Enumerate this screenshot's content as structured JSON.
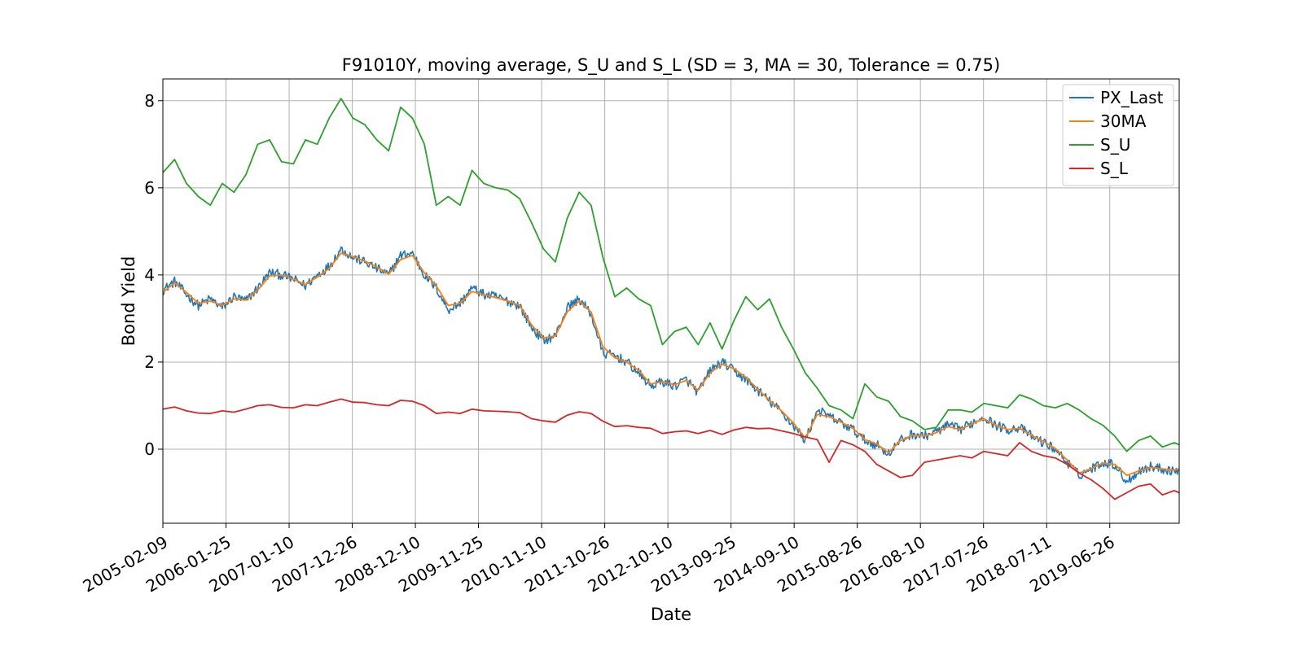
{
  "chart_data": {
    "type": "line",
    "title": "F91010Y, moving average, S_U and S_L (SD = 3, MA = 30, Tolerance  = 0.75)",
    "xlabel": "Date",
    "ylabel": "Bond Yield",
    "xlim": [
      "2005-02-09",
      "2020-07-15"
    ],
    "ylim": [
      -1.7,
      8.5
    ],
    "x_tick_labels": [
      "2005-02-09",
      "2006-01-25",
      "2007-01-10",
      "2007-12-26",
      "2008-12-10",
      "2009-11-25",
      "2010-11-10",
      "2011-10-26",
      "2012-10-10",
      "2013-09-25",
      "2014-09-10",
      "2015-08-26",
      "2016-08-10",
      "2017-07-26",
      "2018-07-11",
      "2019-06-26"
    ],
    "y_ticks": [
      0,
      2,
      4,
      6,
      8
    ],
    "grid": true,
    "legend_position": "top-right",
    "series": [
      {
        "name": "PX_Last",
        "color": "#1f77b4",
        "x": [
          "2005-02-09",
          "2005-04-15",
          "2005-06-20",
          "2005-08-25",
          "2005-10-30",
          "2006-01-04",
          "2006-03-10",
          "2006-05-15",
          "2006-07-20",
          "2006-09-24",
          "2006-11-29",
          "2007-02-03",
          "2007-04-10",
          "2007-06-15",
          "2007-08-20",
          "2007-10-25",
          "2007-12-30",
          "2008-03-05",
          "2008-05-10",
          "2008-07-15",
          "2008-09-19",
          "2008-11-24",
          "2009-01-29",
          "2009-04-05",
          "2009-06-10",
          "2009-08-15",
          "2009-10-20",
          "2009-12-25",
          "2010-03-01",
          "2010-05-06",
          "2010-07-11",
          "2010-09-15",
          "2010-11-20",
          "2011-01-25",
          "2011-04-01",
          "2011-06-06",
          "2011-08-11",
          "2011-10-16",
          "2011-12-21",
          "2012-02-25",
          "2012-05-01",
          "2012-07-06",
          "2012-09-10",
          "2012-11-15",
          "2013-01-20",
          "2013-03-27",
          "2013-06-01",
          "2013-08-06",
          "2013-10-11",
          "2013-12-16",
          "2014-02-20",
          "2014-04-27",
          "2014-07-02",
          "2014-09-06",
          "2014-11-11",
          "2015-01-16",
          "2015-03-23",
          "2015-05-28",
          "2015-08-02",
          "2015-10-07",
          "2015-12-12",
          "2016-02-16",
          "2016-04-22",
          "2016-06-27",
          "2016-09-01",
          "2016-11-06",
          "2017-01-11",
          "2017-03-18",
          "2017-05-23",
          "2017-07-28",
          "2017-10-02",
          "2017-12-07",
          "2018-02-11",
          "2018-04-18",
          "2018-06-23",
          "2018-08-28",
          "2018-11-02",
          "2019-01-07",
          "2019-03-14",
          "2019-05-19",
          "2019-07-24",
          "2019-09-28",
          "2019-12-03",
          "2020-02-07",
          "2020-04-13",
          "2020-06-18",
          "2020-07-15"
        ],
        "y": [
          3.65,
          3.85,
          3.55,
          3.3,
          3.45,
          3.25,
          3.5,
          3.4,
          3.7,
          4.05,
          4.0,
          3.9,
          3.75,
          4.0,
          4.2,
          4.6,
          4.4,
          4.3,
          4.15,
          4.0,
          4.45,
          4.5,
          4.0,
          3.7,
          3.2,
          3.35,
          3.7,
          3.55,
          3.5,
          3.4,
          3.3,
          2.8,
          2.5,
          2.6,
          3.25,
          3.45,
          3.1,
          2.2,
          2.15,
          2.0,
          1.75,
          1.45,
          1.55,
          1.45,
          1.6,
          1.3,
          1.8,
          2.0,
          1.8,
          1.6,
          1.35,
          1.1,
          0.85,
          0.55,
          0.2,
          0.9,
          0.75,
          0.6,
          0.45,
          0.2,
          0.1,
          -0.1,
          0.2,
          0.35,
          0.3,
          0.4,
          0.55,
          0.45,
          0.6,
          0.75,
          0.55,
          0.45,
          0.5,
          0.3,
          0.15,
          0.0,
          -0.3,
          -0.6,
          -0.45,
          -0.3,
          -0.35,
          -0.75,
          -0.5,
          -0.4,
          -0.45,
          -0.5,
          -0.45
        ]
      },
      {
        "name": "30MA",
        "color": "#ff7f0e",
        "x": [
          "2005-02-09",
          "2005-04-15",
          "2005-06-20",
          "2005-08-25",
          "2005-10-30",
          "2006-01-04",
          "2006-03-10",
          "2006-05-15",
          "2006-07-20",
          "2006-09-24",
          "2006-11-29",
          "2007-02-03",
          "2007-04-10",
          "2007-06-15",
          "2007-08-20",
          "2007-10-25",
          "2007-12-30",
          "2008-03-05",
          "2008-05-10",
          "2008-07-15",
          "2008-09-19",
          "2008-11-24",
          "2009-01-29",
          "2009-04-05",
          "2009-06-10",
          "2009-08-15",
          "2009-10-20",
          "2009-12-25",
          "2010-03-01",
          "2010-05-06",
          "2010-07-11",
          "2010-09-15",
          "2010-11-20",
          "2011-01-25",
          "2011-04-01",
          "2011-06-06",
          "2011-08-11",
          "2011-10-16",
          "2011-12-21",
          "2012-02-25",
          "2012-05-01",
          "2012-07-06",
          "2012-09-10",
          "2012-11-15",
          "2013-01-20",
          "2013-03-27",
          "2013-06-01",
          "2013-08-06",
          "2013-10-11",
          "2013-12-16",
          "2014-02-20",
          "2014-04-27",
          "2014-07-02",
          "2014-09-06",
          "2014-11-11",
          "2015-01-16",
          "2015-03-23",
          "2015-05-28",
          "2015-08-02",
          "2015-10-07",
          "2015-12-12",
          "2016-02-16",
          "2016-04-22",
          "2016-06-27",
          "2016-09-01",
          "2016-11-06",
          "2017-01-11",
          "2017-03-18",
          "2017-05-23",
          "2017-07-28",
          "2017-10-02",
          "2017-12-07",
          "2018-02-11",
          "2018-04-18",
          "2018-06-23",
          "2018-08-28",
          "2018-11-02",
          "2019-01-07",
          "2019-03-14",
          "2019-05-19",
          "2019-07-24",
          "2019-09-28",
          "2019-12-03",
          "2020-02-07",
          "2020-04-13",
          "2020-06-18",
          "2020-07-15"
        ],
        "y": [
          3.6,
          3.82,
          3.6,
          3.35,
          3.4,
          3.3,
          3.45,
          3.42,
          3.65,
          3.98,
          4.0,
          3.9,
          3.78,
          3.95,
          4.15,
          4.5,
          4.42,
          4.32,
          4.18,
          4.02,
          4.35,
          4.45,
          4.05,
          3.75,
          3.3,
          3.35,
          3.62,
          3.55,
          3.48,
          3.4,
          3.3,
          2.85,
          2.55,
          2.6,
          3.15,
          3.4,
          3.15,
          2.35,
          2.1,
          2.0,
          1.8,
          1.5,
          1.55,
          1.48,
          1.58,
          1.35,
          1.75,
          1.95,
          1.85,
          1.65,
          1.38,
          1.12,
          0.88,
          0.6,
          0.25,
          0.8,
          0.75,
          0.62,
          0.48,
          0.22,
          0.12,
          -0.08,
          0.2,
          0.32,
          0.3,
          0.38,
          0.52,
          0.45,
          0.58,
          0.7,
          0.55,
          0.45,
          0.48,
          0.32,
          0.18,
          0.02,
          -0.25,
          -0.55,
          -0.45,
          -0.32,
          -0.35,
          -0.6,
          -0.5,
          -0.42,
          -0.45,
          -0.48,
          -0.45
        ]
      },
      {
        "name": "S_U",
        "color": "#2ca02c",
        "x": [
          "2005-02-09",
          "2005-04-15",
          "2005-06-20",
          "2005-08-25",
          "2005-10-30",
          "2006-01-04",
          "2006-03-10",
          "2006-05-15",
          "2006-07-20",
          "2006-09-24",
          "2006-11-29",
          "2007-02-03",
          "2007-04-10",
          "2007-06-15",
          "2007-08-20",
          "2007-10-25",
          "2007-12-30",
          "2008-03-05",
          "2008-05-10",
          "2008-07-15",
          "2008-09-19",
          "2008-11-24",
          "2009-01-29",
          "2009-04-05",
          "2009-06-10",
          "2009-08-15",
          "2009-10-20",
          "2009-12-25",
          "2010-03-01",
          "2010-05-06",
          "2010-07-11",
          "2010-09-15",
          "2010-11-20",
          "2011-01-25",
          "2011-04-01",
          "2011-06-06",
          "2011-08-11",
          "2011-10-16",
          "2011-12-21",
          "2012-02-25",
          "2012-05-01",
          "2012-07-06",
          "2012-09-10",
          "2012-11-15",
          "2013-01-20",
          "2013-03-27",
          "2013-06-01",
          "2013-08-06",
          "2013-10-11",
          "2013-12-16",
          "2014-02-20",
          "2014-04-27",
          "2014-07-02",
          "2014-09-06",
          "2014-11-11",
          "2015-01-16",
          "2015-03-23",
          "2015-05-28",
          "2015-08-02",
          "2015-10-07",
          "2015-12-12",
          "2016-02-16",
          "2016-04-22",
          "2016-06-27",
          "2016-09-01",
          "2016-11-06",
          "2017-01-11",
          "2017-03-18",
          "2017-05-23",
          "2017-07-28",
          "2017-10-02",
          "2017-12-07",
          "2018-02-11",
          "2018-04-18",
          "2018-06-23",
          "2018-08-28",
          "2018-11-02",
          "2019-01-07",
          "2019-03-14",
          "2019-05-19",
          "2019-07-24",
          "2019-09-28",
          "2019-12-03",
          "2020-02-07",
          "2020-04-13",
          "2020-06-18",
          "2020-07-15"
        ],
        "y": [
          6.35,
          6.65,
          6.1,
          5.8,
          5.6,
          6.1,
          5.9,
          6.3,
          7.0,
          7.1,
          6.6,
          6.55,
          7.1,
          7.0,
          7.6,
          8.05,
          7.6,
          7.45,
          7.1,
          6.85,
          7.85,
          7.6,
          7.0,
          5.6,
          5.8,
          5.6,
          6.4,
          6.1,
          6.0,
          5.95,
          5.75,
          5.2,
          4.6,
          4.3,
          5.3,
          5.9,
          5.6,
          4.4,
          3.5,
          3.7,
          3.45,
          3.3,
          2.4,
          2.7,
          2.8,
          2.4,
          2.9,
          2.3,
          2.95,
          3.5,
          3.2,
          3.45,
          2.8,
          2.3,
          1.75,
          1.4,
          1.0,
          0.9,
          0.7,
          1.5,
          1.2,
          1.1,
          0.75,
          0.65,
          0.45,
          0.5,
          0.9,
          0.9,
          0.85,
          1.05,
          1.0,
          0.95,
          1.25,
          1.15,
          1.0,
          0.95,
          1.05,
          0.9,
          0.7,
          0.55,
          0.3,
          -0.05,
          0.2,
          0.3,
          0.05,
          0.15,
          0.1
        ]
      },
      {
        "name": "S_L",
        "color": "#d62728",
        "x": [
          "2005-02-09",
          "2005-04-15",
          "2005-06-20",
          "2005-08-25",
          "2005-10-30",
          "2006-01-04",
          "2006-03-10",
          "2006-05-15",
          "2006-07-20",
          "2006-09-24",
          "2006-11-29",
          "2007-02-03",
          "2007-04-10",
          "2007-06-15",
          "2007-08-20",
          "2007-10-25",
          "2007-12-30",
          "2008-03-05",
          "2008-05-10",
          "2008-07-15",
          "2008-09-19",
          "2008-11-24",
          "2009-01-29",
          "2009-04-05",
          "2009-06-10",
          "2009-08-15",
          "2009-10-20",
          "2009-12-25",
          "2010-03-01",
          "2010-05-06",
          "2010-07-11",
          "2010-09-15",
          "2010-11-20",
          "2011-01-25",
          "2011-04-01",
          "2011-06-06",
          "2011-08-11",
          "2011-10-16",
          "2011-12-21",
          "2012-02-25",
          "2012-05-01",
          "2012-07-06",
          "2012-09-10",
          "2012-11-15",
          "2013-01-20",
          "2013-03-27",
          "2013-06-01",
          "2013-08-06",
          "2013-10-11",
          "2013-12-16",
          "2014-02-20",
          "2014-04-27",
          "2014-07-02",
          "2014-09-06",
          "2014-11-11",
          "2015-01-16",
          "2015-03-23",
          "2015-05-28",
          "2015-08-02",
          "2015-10-07",
          "2015-12-12",
          "2016-02-16",
          "2016-04-22",
          "2016-06-27",
          "2016-09-01",
          "2016-11-06",
          "2017-01-11",
          "2017-03-18",
          "2017-05-23",
          "2017-07-28",
          "2017-10-02",
          "2017-12-07",
          "2018-02-11",
          "2018-04-18",
          "2018-06-23",
          "2018-08-28",
          "2018-11-02",
          "2019-01-07",
          "2019-03-14",
          "2019-05-19",
          "2019-07-24",
          "2019-09-28",
          "2019-12-03",
          "2020-02-07",
          "2020-04-13",
          "2020-06-18",
          "2020-07-15"
        ],
        "y": [
          0.92,
          0.97,
          0.88,
          0.83,
          0.82,
          0.88,
          0.85,
          0.92,
          1.0,
          1.02,
          0.96,
          0.95,
          1.02,
          1.0,
          1.08,
          1.15,
          1.08,
          1.07,
          1.02,
          1.0,
          1.12,
          1.1,
          1.0,
          0.82,
          0.85,
          0.82,
          0.92,
          0.88,
          0.87,
          0.86,
          0.84,
          0.7,
          0.65,
          0.62,
          0.78,
          0.86,
          0.82,
          0.64,
          0.52,
          0.54,
          0.5,
          0.48,
          0.36,
          0.4,
          0.42,
          0.36,
          0.43,
          0.34,
          0.44,
          0.5,
          0.47,
          0.48,
          0.42,
          0.36,
          0.28,
          0.22,
          -0.3,
          0.2,
          0.1,
          -0.05,
          -0.35,
          -0.5,
          -0.65,
          -0.6,
          -0.3,
          -0.25,
          -0.2,
          -0.15,
          -0.2,
          -0.05,
          -0.1,
          -0.15,
          0.15,
          -0.05,
          -0.15,
          -0.2,
          -0.35,
          -0.55,
          -0.7,
          -0.9,
          -1.15,
          -1.0,
          -0.85,
          -0.8,
          -1.05,
          -0.95,
          -1.0
        ]
      }
    ]
  }
}
